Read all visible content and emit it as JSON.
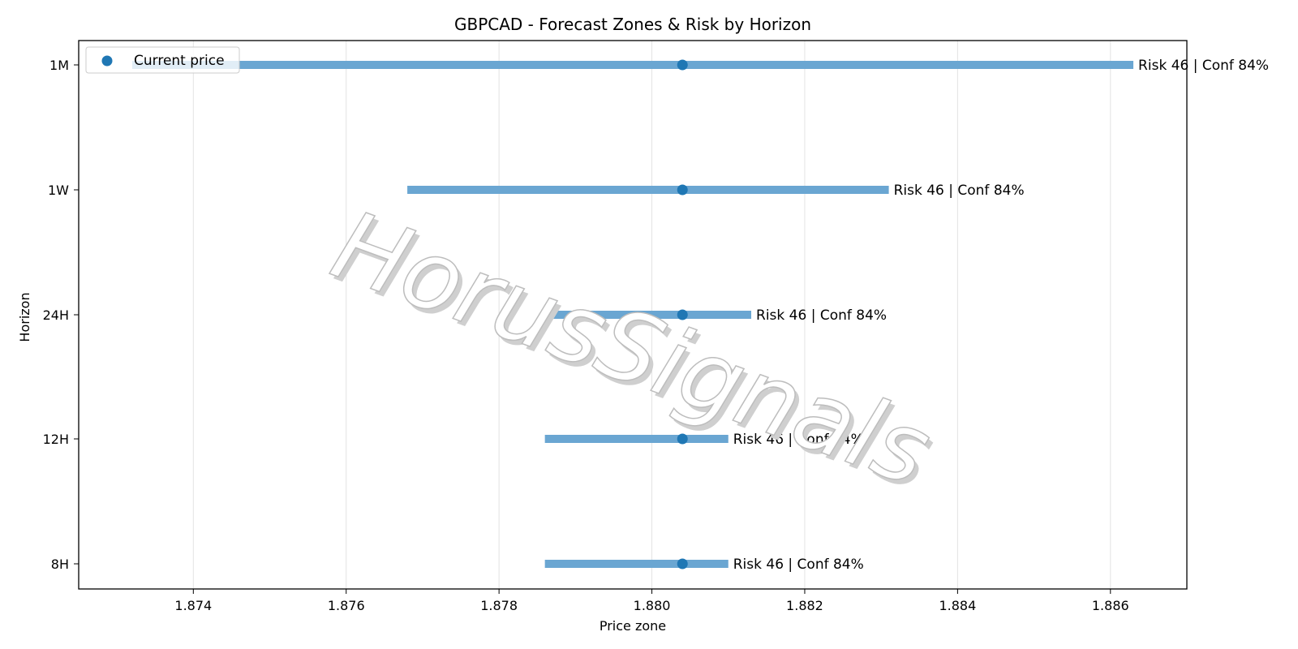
{
  "chart_data": {
    "type": "range",
    "title": "GBPCAD - Forecast Zones & Risk by Horizon",
    "xlabel": "Price zone",
    "ylabel": "Horizon",
    "xlim": [
      1.8725,
      1.887
    ],
    "x_ticks": [
      1.874,
      1.876,
      1.878,
      1.88,
      1.882,
      1.884,
      1.886
    ],
    "x_tick_labels": [
      "1.874",
      "1.876",
      "1.878",
      "1.880",
      "1.882",
      "1.884",
      "1.886"
    ],
    "grid": "vertical",
    "legend": {
      "position": "top-left",
      "entries": [
        "Current price"
      ]
    },
    "colors": {
      "zone": "#6aa6d2",
      "current_price": "#1f77b4",
      "grid": "#e3e3e3",
      "watermark_stroke": "#bdbdbd"
    },
    "rows": [
      {
        "horizon": "1M",
        "low": 1.8732,
        "high": 1.8863,
        "current": 1.8804,
        "label": "Risk 46 | Conf 84%"
      },
      {
        "horizon": "1W",
        "low": 1.8768,
        "high": 1.8831,
        "current": 1.8804,
        "label": "Risk 46 | Conf 84%"
      },
      {
        "horizon": "24H",
        "low": 1.8786,
        "high": 1.8813,
        "current": 1.8804,
        "label": "Risk 46 | Conf 84%"
      },
      {
        "horizon": "12H",
        "low": 1.8786,
        "high": 1.881,
        "current": 1.8804,
        "label": "Risk 46 | Conf 84%"
      },
      {
        "horizon": "8H",
        "low": 1.8786,
        "high": 1.881,
        "current": 1.8804,
        "label": "Risk 46 | Conf 84%"
      }
    ],
    "watermark": "HorusSignals"
  }
}
